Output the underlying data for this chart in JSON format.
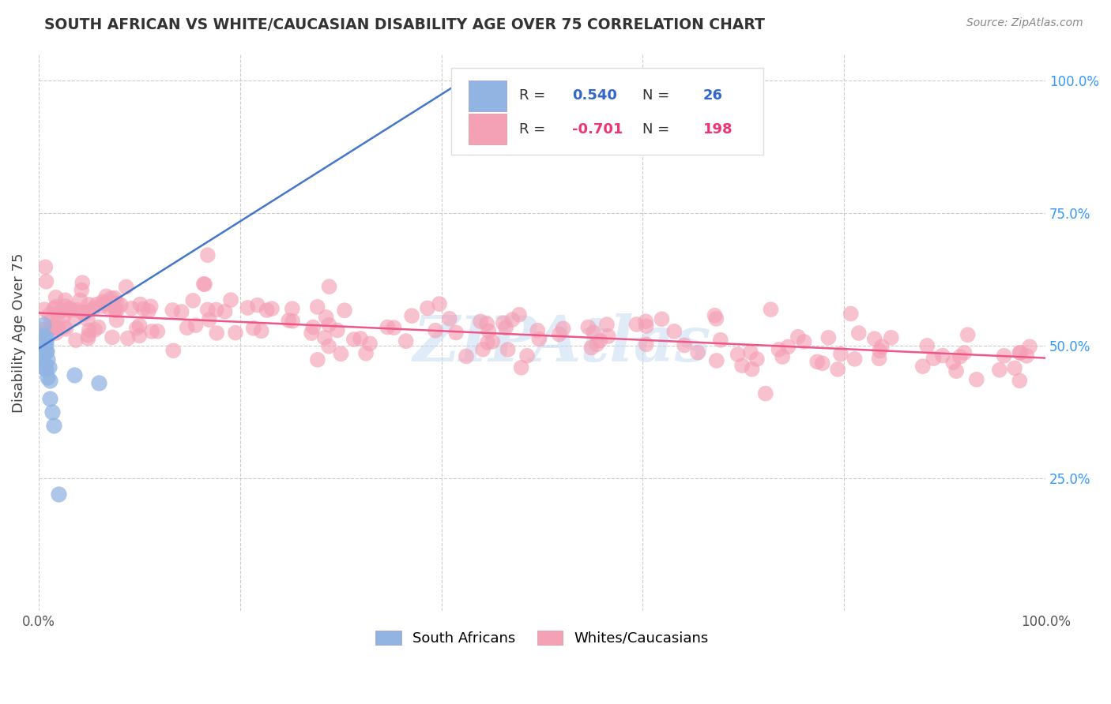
{
  "title": "SOUTH AFRICAN VS WHITE/CAUCASIAN DISABILITY AGE OVER 75 CORRELATION CHART",
  "source": "Source: ZipAtlas.com",
  "ylabel": "Disability Age Over 75",
  "legend_label_1": "South Africans",
  "legend_label_2": "Whites/Caucasians",
  "r1": 0.54,
  "n1": 26,
  "r2": -0.701,
  "n2": 198,
  "blue_color": "#92B4E3",
  "pink_color": "#F4A0B5",
  "blue_line_color": "#4477CC",
  "pink_line_color": "#EE5588",
  "blue_text_color": "#3366CC",
  "pink_text_color": "#EE3377",
  "title_color": "#333333",
  "source_color": "#888888",
  "axis_label_color": "#444444",
  "right_tick_color": "#3399FF",
  "background_color": "#FFFFFF",
  "grid_color": "#CCCCCC",
  "watermark_color": "#C0D8F0",
  "xlim": [
    0.0,
    1.0
  ],
  "ylim": [
    0.0,
    1.05
  ],
  "y_ticks": [
    0.25,
    0.5,
    0.75,
    1.0
  ],
  "x_ticks": [
    0.0,
    0.2,
    0.4,
    0.6,
    0.8,
    1.0
  ],
  "blue_line_x": [
    0.0,
    0.43
  ],
  "blue_line_y": [
    0.495,
    1.01
  ],
  "pink_line_x": [
    0.0,
    1.0
  ],
  "pink_line_y": [
    0.562,
    0.477
  ]
}
